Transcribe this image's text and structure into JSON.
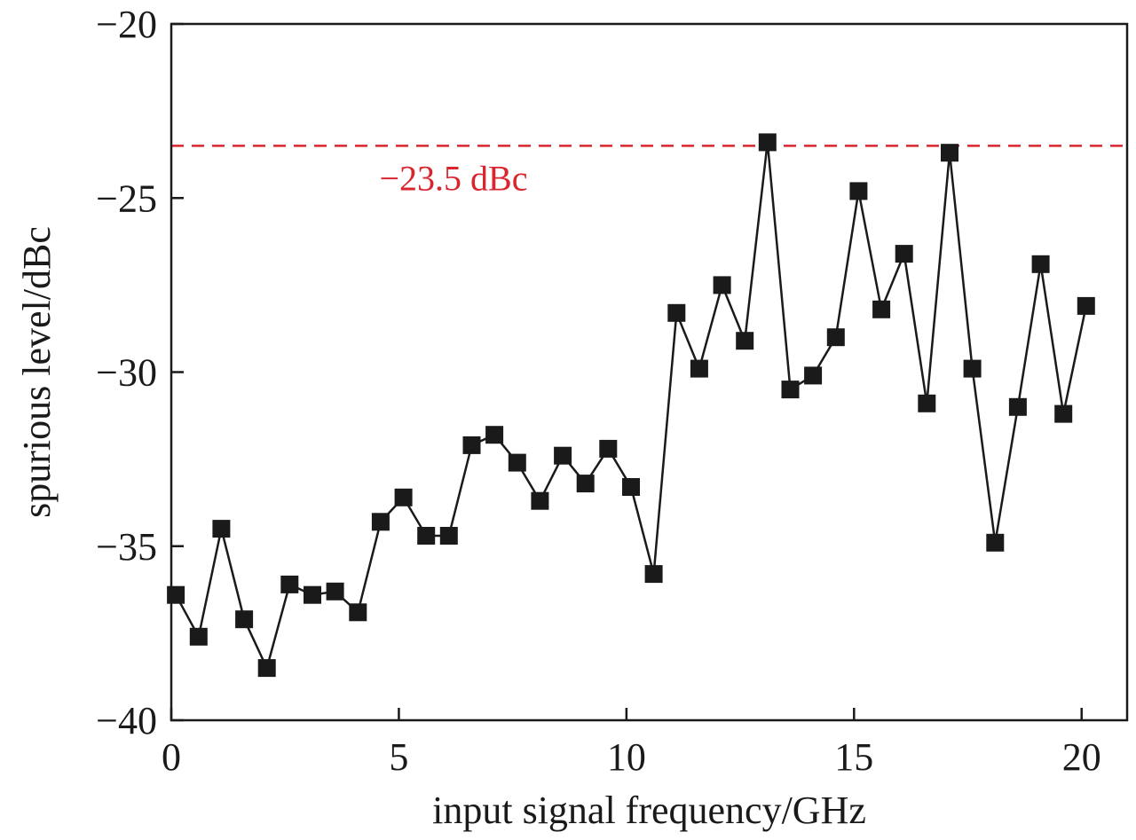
{
  "chart_data": {
    "type": "line",
    "xlabel": "input signal frequency/GHz",
    "ylabel": "spurious level/dBc",
    "xlim": [
      0,
      21
    ],
    "ylim": [
      -40,
      -20
    ],
    "xticks": [
      0,
      5,
      10,
      15,
      20
    ],
    "yticks": [
      -40,
      -35,
      -30,
      -25,
      -20
    ],
    "xtick_labels": [
      "0",
      "5",
      "10",
      "15",
      "20"
    ],
    "ytick_labels": [
      "−40",
      "−35",
      "−30",
      "−25",
      "−20"
    ],
    "grid": false,
    "colors": {
      "series": "#1a1a1a",
      "reference": "#d9262e"
    },
    "reference_line": {
      "y": -23.5,
      "label": "−23.5 dBc",
      "style": "dashed"
    },
    "series": [
      {
        "marker": "square",
        "x": [
          0.1,
          0.6,
          1.1,
          1.6,
          2.1,
          2.6,
          3.1,
          3.6,
          4.1,
          4.6,
          5.1,
          5.6,
          6.1,
          6.6,
          7.1,
          7.6,
          8.1,
          8.6,
          9.1,
          9.6,
          10.1,
          10.6,
          11.1,
          11.6,
          12.1,
          12.6,
          13.1,
          13.6,
          14.1,
          14.6,
          15.1,
          15.6,
          16.1,
          16.6,
          17.1,
          17.6,
          18.1,
          18.6,
          19.1,
          19.6,
          20.1
        ],
        "y": [
          -36.4,
          -37.6,
          -34.5,
          -37.1,
          -38.5,
          -36.1,
          -36.4,
          -36.3,
          -36.9,
          -34.3,
          -33.6,
          -34.7,
          -34.7,
          -32.1,
          -31.8,
          -32.6,
          -33.7,
          -32.4,
          -33.2,
          -32.2,
          -33.3,
          -35.8,
          -28.3,
          -29.9,
          -27.5,
          -29.1,
          -23.4,
          -30.5,
          -30.1,
          -29.0,
          -24.8,
          -28.2,
          -26.6,
          -30.9,
          -23.7,
          -29.9,
          -34.9,
          -31.0,
          -26.9,
          -31.2,
          -28.1
        ]
      }
    ]
  }
}
